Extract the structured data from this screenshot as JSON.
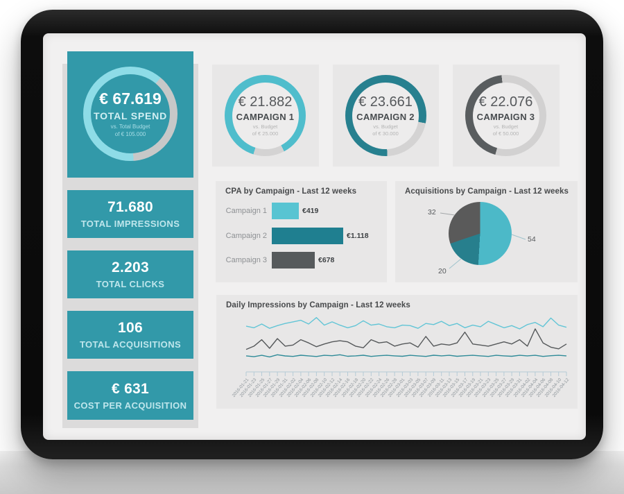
{
  "colors": {
    "teal_tile": "#3299a9",
    "teal_tile_label": "#bfe6ec",
    "screen_bg": "#f1f0f0",
    "card_bg": "#e8e7e7",
    "panel_bg": "#dcdbdb",
    "title_text": "#47494b",
    "muted_text": "#8d9093",
    "value_text": "#55585b",
    "small_text": "#b4b4b4",
    "axis_color": "#b5cbd6",
    "axis_label": "#8e969b"
  },
  "sidebar": {
    "tiles": [
      {
        "value": "71.680",
        "label": "TOTAL IMPRESSIONS"
      },
      {
        "value": "2.203",
        "label": "TOTAL CLICKS"
      },
      {
        "value": "106",
        "label": "TOTAL ACQUISITIONS"
      },
      {
        "value": "€ 631",
        "label": "COST PER ACQUISITION"
      }
    ]
  },
  "chart_data": [
    {
      "id": "total-spend-gauge",
      "type": "donut",
      "value_label": "€ 67.619",
      "label": "TOTAL SPEND",
      "sub1": "vs. Total Budget",
      "sub2": "of € 105.000",
      "value": 67619,
      "max": 105000,
      "fill_color": "#8edce7",
      "track_color": "#c7c8c8",
      "hole_color": "#3299a9",
      "fill_from": 176,
      "fill_to": 40
    },
    {
      "id": "campaign1-gauge",
      "type": "donut",
      "value_label": "€ 21.882",
      "label": "CAMPAIGN 1",
      "sub1": "vs. Budget",
      "sub2": "of € 25.000",
      "value": 21882,
      "max": 25000,
      "fill_color": "#4fbdcc",
      "track_color": "#d4d3d3",
      "hole_color": "#edecec",
      "fill_from": 197,
      "fill_to": 152
    },
    {
      "id": "campaign2-gauge",
      "type": "donut",
      "value_label": "€ 23.661",
      "label": "CAMPAIGN 2",
      "sub1": "vs. Budget",
      "sub2": "of € 30.000",
      "value": 23661,
      "max": 30000,
      "fill_color": "#27808f",
      "track_color": "#d4d3d3",
      "hole_color": "#edecec",
      "fill_from": 178,
      "fill_to": 101
    },
    {
      "id": "campaign3-gauge",
      "type": "donut",
      "value_label": "€ 22.076",
      "label": "CAMPAIGN 3",
      "sub1": "vs. Budget",
      "sub2": "of € 50.000",
      "value": 22076,
      "max": 50000,
      "fill_color": "#595d5f",
      "track_color": "#d2d1d1",
      "hole_color": "#edecec",
      "fill_from": 195,
      "fill_to": 354
    },
    {
      "id": "cpa-by-campaign",
      "type": "bar",
      "orientation": "horizontal",
      "title": "CPA by Campaign - Last 12 weeks",
      "categories": [
        "Campaign 1",
        "Campaign 2",
        "Campaign 3"
      ],
      "values": [
        419,
        1118,
        678
      ],
      "value_labels": [
        "€419",
        "€1.118",
        "€678"
      ],
      "colors": [
        "#58c4d2",
        "#1f7f90",
        "#565a5c"
      ],
      "xlim": [
        0,
        1118
      ]
    },
    {
      "id": "acquisitions-by-campaign",
      "type": "pie",
      "title": "Acquisitions by Campaign - Last 12 weeks",
      "labels": [
        "Campaign 1",
        "Campaign 2",
        "Campaign 3"
      ],
      "values": [
        54,
        20,
        32
      ],
      "colors": [
        "#4cb9c8",
        "#277f8d",
        "#5a5a5a"
      ],
      "legend_position": "none"
    },
    {
      "id": "daily-impressions",
      "type": "line",
      "title": "Daily Impressions by Campaign - Last 12 weeks",
      "ymax": 900,
      "x": [
        "2016-01-21",
        "2016-01-23",
        "2016-01-25",
        "2016-01-27",
        "2016-01-29",
        "2016-01-31",
        "2016-02-02",
        "2016-02-04",
        "2016-02-06",
        "2016-02-08",
        "2016-02-10",
        "2016-02-12",
        "2016-02-14",
        "2016-02-16",
        "2016-02-18",
        "2016-02-20",
        "2016-02-22",
        "2016-02-24",
        "2016-02-26",
        "2016-02-28",
        "2016-03-01",
        "2016-03-03",
        "2016-03-05",
        "2016-03-07",
        "2016-03-09",
        "2016-03-11",
        "2016-03-13",
        "2016-03-15",
        "2016-03-17",
        "2016-03-19",
        "2016-03-21",
        "2016-03-23",
        "2016-03-25",
        "2016-03-27",
        "2016-03-29",
        "2016-03-31",
        "2016-04-02",
        "2016-04-04",
        "2016-04-06",
        "2016-04-08",
        "2016-04-10",
        "2016-04-12"
      ],
      "series": [
        {
          "name": "Campaign 1",
          "color": "#62c5d6",
          "values": [
            680,
            650,
            720,
            640,
            690,
            730,
            760,
            790,
            720,
            840,
            700,
            760,
            700,
            650,
            690,
            780,
            700,
            720,
            670,
            650,
            700,
            690,
            640,
            730,
            710,
            770,
            690,
            730,
            650,
            700,
            670,
            770,
            710,
            650,
            690,
            630,
            710,
            750,
            670,
            830,
            700,
            660
          ]
        },
        {
          "name": "Campaign 3",
          "color": "#55585a",
          "values": [
            250,
            310,
            430,
            270,
            450,
            310,
            330,
            430,
            370,
            300,
            350,
            390,
            410,
            390,
            310,
            280,
            430,
            370,
            390,
            310,
            350,
            370,
            290,
            490,
            310,
            350,
            330,
            370,
            570,
            350,
            330,
            310,
            350,
            390,
            350,
            430,
            310,
            630,
            370,
            290,
            260,
            350
          ]
        },
        {
          "name": "Campaign 2",
          "color": "#2e8b98",
          "values": [
            130,
            115,
            140,
            110,
            150,
            128,
            120,
            142,
            130,
            118,
            140,
            132,
            150,
            122,
            130,
            142,
            120,
            132,
            140,
            130,
            122,
            140,
            130,
            120,
            142,
            130,
            140,
            122,
            132,
            140,
            130,
            120,
            140,
            130,
            122,
            140,
            130,
            140,
            120,
            132,
            140,
            130
          ]
        }
      ]
    }
  ]
}
